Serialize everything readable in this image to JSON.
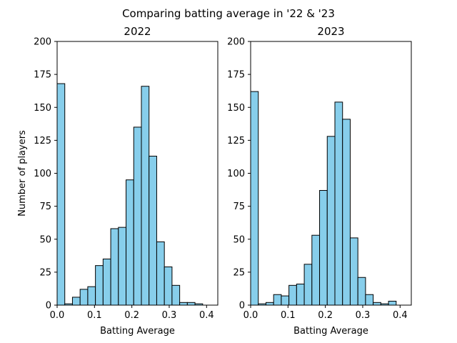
{
  "suptitle": "Comparing batting average in '22 & '23",
  "colors": {
    "bar_fill": "#87ceeb",
    "bar_edge": "#000000",
    "axes": "#000000",
    "background": "#ffffff"
  },
  "chart_data": [
    {
      "type": "bar",
      "subtype": "histogram",
      "title": "2022",
      "xlabel": "Batting Average",
      "ylabel": "Number of players",
      "xlim": [
        0,
        0.43
      ],
      "ylim": [
        0,
        200
      ],
      "xticks": [
        "0.0",
        "0.1",
        "0.2",
        "0.3",
        "0.4"
      ],
      "yticks": [
        "0",
        "25",
        "50",
        "75",
        "100",
        "125",
        "150",
        "175",
        "200"
      ],
      "grid": false,
      "bin_start": 0.0,
      "bin_width": 0.0205,
      "values": [
        168,
        1,
        6,
        12,
        14,
        30,
        35,
        58,
        59,
        95,
        135,
        166,
        113,
        48,
        29,
        15,
        2,
        2,
        1,
        0
      ]
    },
    {
      "type": "bar",
      "subtype": "histogram",
      "title": "2023",
      "xlabel": "Batting Average",
      "ylabel": "",
      "xlim": [
        0,
        0.43
      ],
      "ylim": [
        0,
        200
      ],
      "xticks": [
        "0.0",
        "0.1",
        "0.2",
        "0.3",
        "0.4"
      ],
      "yticks": [
        "0",
        "25",
        "50",
        "75",
        "100",
        "125",
        "150",
        "175",
        "200"
      ],
      "grid": false,
      "bin_start": 0.0,
      "bin_width": 0.0205,
      "values": [
        162,
        1,
        2,
        8,
        7,
        15,
        16,
        31,
        53,
        87,
        128,
        154,
        141,
        51,
        21,
        8,
        2,
        1,
        3,
        0
      ]
    }
  ]
}
